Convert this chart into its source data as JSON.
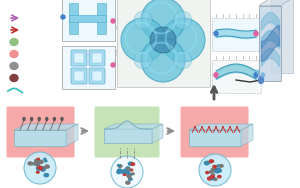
{
  "bg_color": "#ffffff",
  "salmon_color": "#f5a0a0",
  "green_bg": "#c0e0b0",
  "light_blue_slab": "#b8dce8",
  "slab_edge": "#80b0c0",
  "slab_side": "#90c0d0",
  "sphere_color": "#c8ecf8",
  "sphere_border": "#70b8d0",
  "arrow_gray": "#909090",
  "arrow_dark": "#606060",
  "tube_color": "#60c0d8",
  "tube_edge": "#38a0c0",
  "tube_dark": "#3880a8",
  "wave_color": "#78c8d8",
  "wave_edge": "#3898b8",
  "slab3d_face": "#c8d8e8",
  "slab3d_edge": "#8898a8",
  "dot_pink": "#e060a0",
  "dot_blue": "#4080c8",
  "legend_teal": "#38c0c0",
  "legend_darkred": "#804040",
  "legend_gray": "#909090",
  "legend_pink": "#f09090",
  "legend_green": "#90c080",
  "legend_red": "#c03030",
  "legend_purple": "#b060b0"
}
